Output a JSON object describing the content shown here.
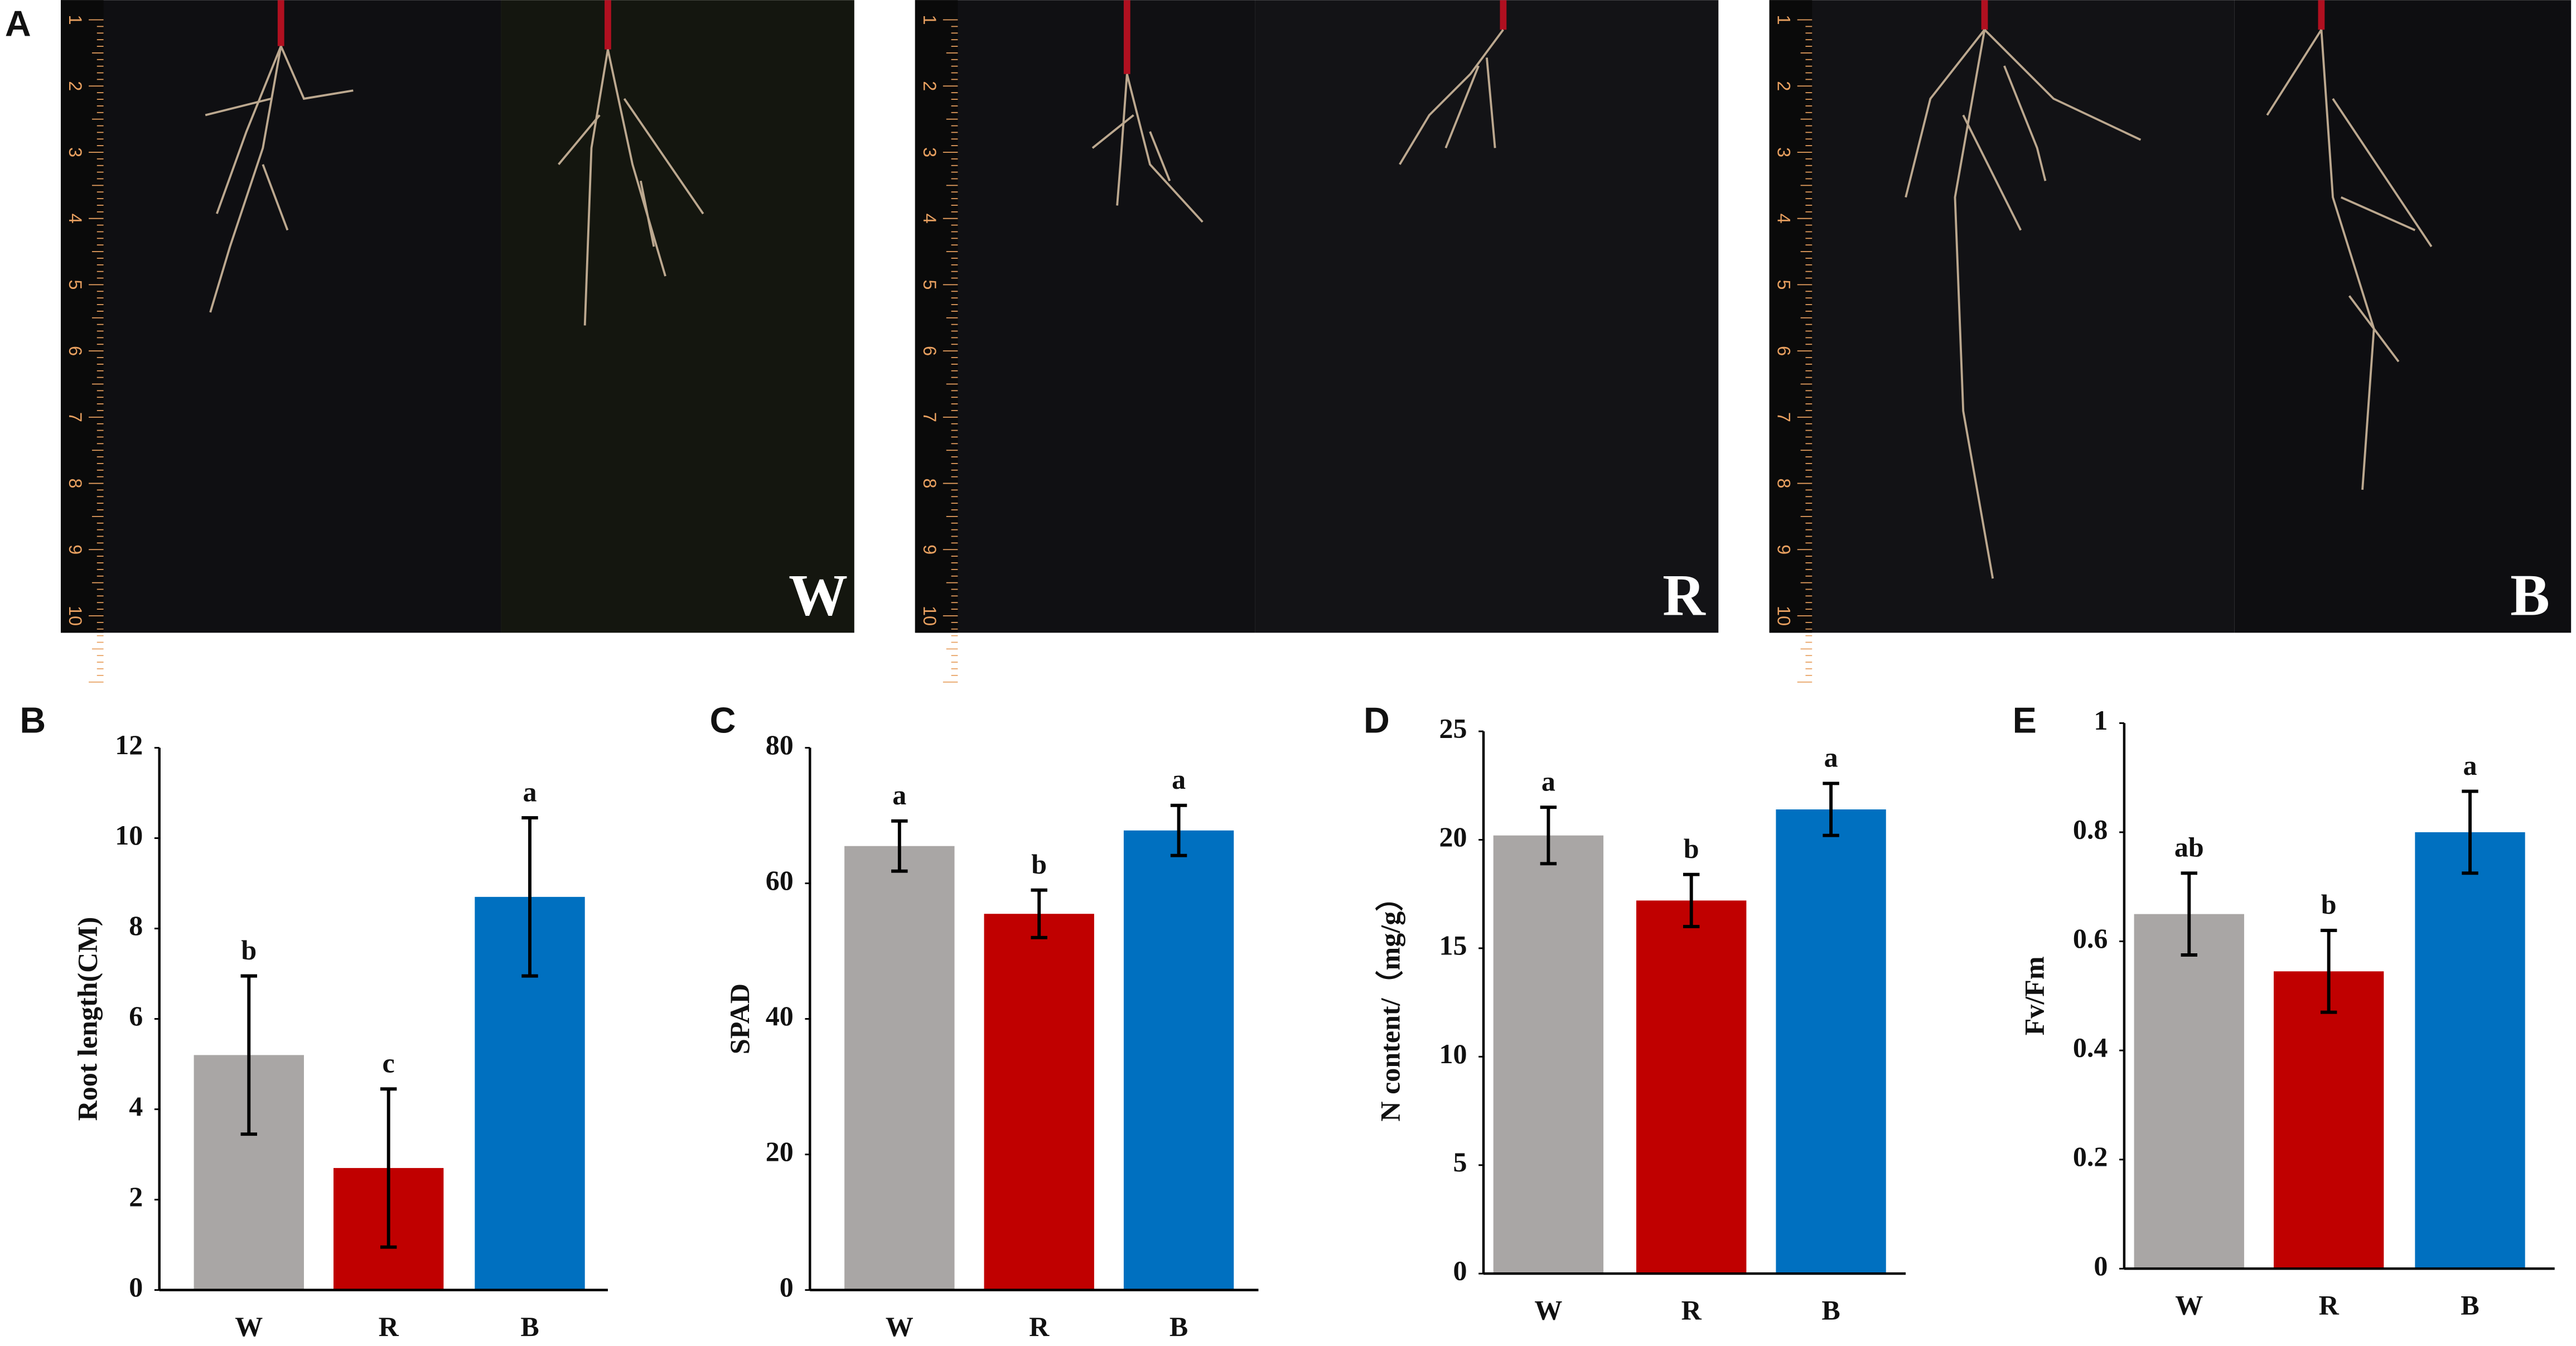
{
  "photos": {
    "panel": "A",
    "labels": [
      "W",
      "R",
      "B"
    ],
    "ruler_ticks": [
      1,
      2,
      3,
      4,
      5,
      6,
      7,
      8,
      9,
      10
    ]
  },
  "chart_data": [
    {
      "type": "bar",
      "panel": "B",
      "y_label": "Root length(CM)",
      "categories": [
        "W",
        "R",
        "B"
      ],
      "values": [
        5.2,
        2.7,
        8.7
      ],
      "errors": [
        1.75,
        1.75,
        1.75
      ],
      "significance_letters": [
        "b",
        "c",
        "a"
      ],
      "colors": [
        "#a9a6a5",
        "#c00000",
        "#0070c0"
      ],
      "ylim": [
        0,
        12
      ],
      "yticks": [
        0,
        2,
        4,
        6,
        8,
        10,
        12
      ]
    },
    {
      "type": "bar",
      "panel": "C",
      "y_label": "SPAD",
      "categories": [
        "W",
        "R",
        "B"
      ],
      "values": [
        65.5,
        55.5,
        67.8
      ],
      "errors": [
        3.7,
        3.5,
        3.7
      ],
      "significance_letters": [
        "a",
        "b",
        "a"
      ],
      "colors": [
        "#a9a6a5",
        "#c00000",
        "#0070c0"
      ],
      "ylim": [
        0,
        80
      ],
      "yticks": [
        0,
        20,
        40,
        60,
        80
      ]
    },
    {
      "type": "bar",
      "panel": "D",
      "y_label": "N content/（mg/g）",
      "categories": [
        "W",
        "R",
        "B"
      ],
      "values": [
        20.2,
        17.2,
        21.4
      ],
      "errors": [
        1.3,
        1.2,
        1.2
      ],
      "significance_letters": [
        "a",
        "b",
        "a"
      ],
      "colors": [
        "#a9a6a5",
        "#c00000",
        "#0070c0"
      ],
      "ylim": [
        0,
        25
      ],
      "yticks": [
        0,
        5,
        10,
        15,
        20,
        25
      ]
    },
    {
      "type": "bar",
      "panel": "E",
      "y_label": "Fv/Fm",
      "categories": [
        "W",
        "R",
        "B"
      ],
      "values": [
        0.65,
        0.545,
        0.8
      ],
      "errors": [
        0.075,
        0.075,
        0.075
      ],
      "significance_letters": [
        "ab",
        "b",
        "a"
      ],
      "colors": [
        "#a9a6a5",
        "#c00000",
        "#0070c0"
      ],
      "ylim": [
        0,
        1
      ],
      "yticks": [
        0,
        0.2,
        0.4,
        0.6,
        0.8,
        1
      ]
    }
  ]
}
